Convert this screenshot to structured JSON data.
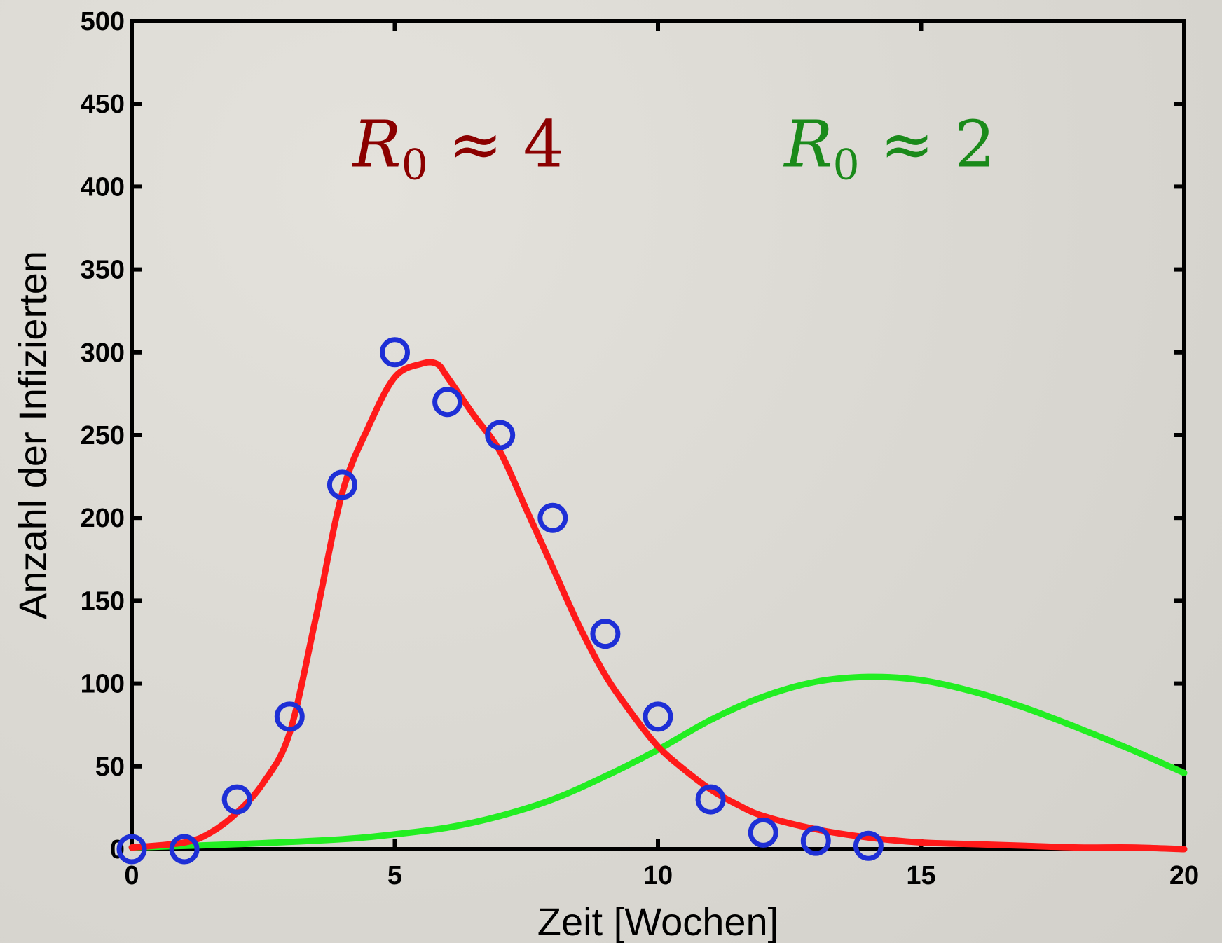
{
  "chart_data": {
    "type": "line",
    "xlabel": "Zeit [Wochen]",
    "ylabel": "Anzahl der Infizierten",
    "xlim": [
      0,
      20
    ],
    "ylim": [
      0,
      500
    ],
    "xticks": [
      0,
      5,
      10,
      15,
      20
    ],
    "yticks": [
      0,
      50,
      100,
      150,
      200,
      250,
      300,
      350,
      400,
      450,
      500
    ],
    "grid": false,
    "annotations": [
      {
        "text": "R0 ≈ 4",
        "main": "R",
        "sub": "0",
        "rest": " ≈ 4",
        "color": "#8b0000",
        "x": 4.2,
        "y": 425
      },
      {
        "text": "R0 ≈ 2",
        "main": "R",
        "sub": "0",
        "rest": " ≈ 2",
        "color": "#1a8a1a",
        "x": 12.4,
        "y": 425
      }
    ],
    "series": [
      {
        "kind": "scatter",
        "color": "#1e2fd6",
        "x": [
          0,
          1,
          2,
          3,
          4,
          5,
          6,
          7,
          8,
          9,
          10,
          11,
          12,
          13,
          14
        ],
        "y": [
          0,
          0,
          30,
          80,
          220,
          300,
          270,
          250,
          200,
          130,
          80,
          30,
          10,
          5,
          2
        ]
      },
      {
        "kind": "line",
        "color": "#ff1a1a",
        "x": [
          0,
          1,
          1.5,
          2,
          2.5,
          3,
          3.5,
          4,
          4.5,
          5,
          5.5,
          5.8,
          6,
          6.5,
          7,
          7.5,
          8,
          8.5,
          9,
          9.5,
          10,
          10.5,
          11,
          11.5,
          12,
          13,
          14,
          15,
          16,
          17,
          18,
          19,
          20
        ],
        "y": [
          1,
          4,
          10,
          22,
          40,
          70,
          140,
          215,
          255,
          285,
          293,
          293,
          285,
          262,
          240,
          205,
          170,
          135,
          105,
          82,
          62,
          48,
          36,
          27,
          20,
          12,
          7,
          4,
          3,
          2,
          1,
          1,
          0
        ]
      },
      {
        "kind": "line",
        "color": "#22ee22",
        "x": [
          0,
          2,
          4,
          5,
          6,
          7,
          8,
          9,
          10,
          11,
          12,
          13,
          14,
          15,
          16,
          17,
          18,
          19,
          20
        ],
        "y": [
          1,
          3,
          6,
          9,
          13,
          20,
          30,
          44,
          60,
          78,
          92,
          101,
          104,
          102,
          95,
          85,
          73,
          60,
          46
        ]
      }
    ]
  }
}
